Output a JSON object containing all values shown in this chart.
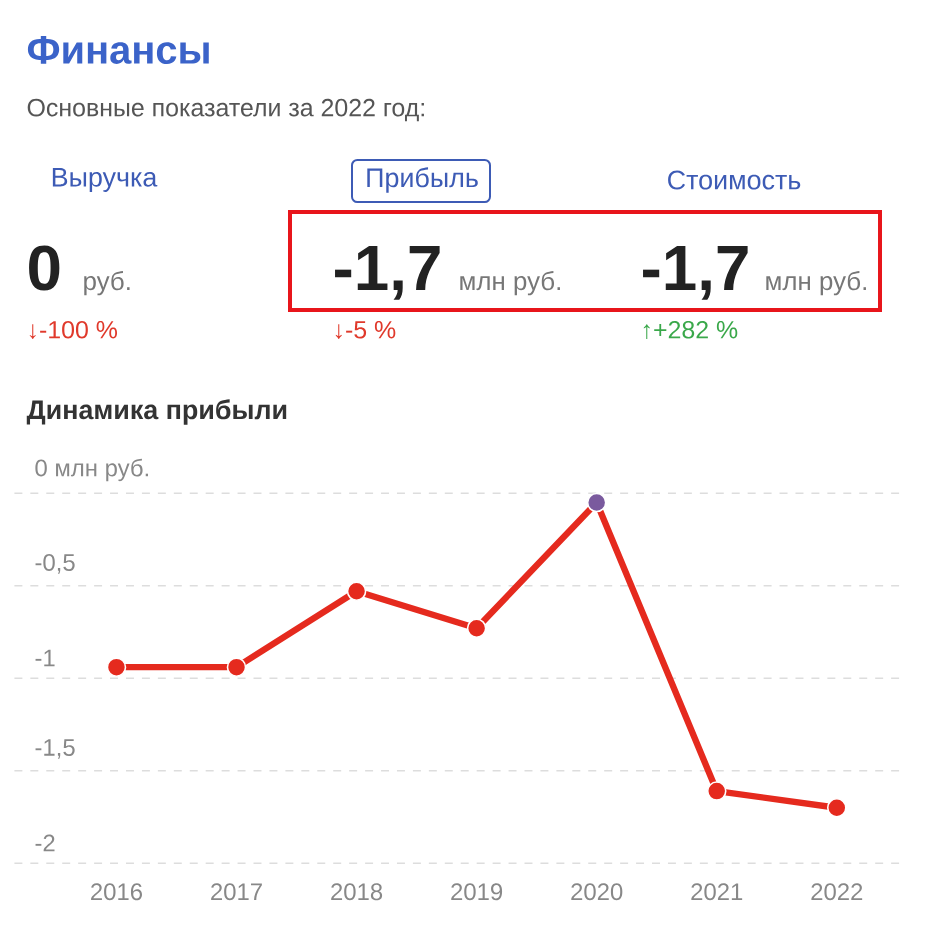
{
  "chart_data": [
    {
      "type": "other",
      "title": "Финансы",
      "subtitle": "Основные показатели за 2022 год:",
      "annotations": [
        "Выручка",
        "Прибыль",
        "Стоимость",
        "0",
        "руб.",
        "-1,7",
        "млн руб.",
        "-1,7",
        "млн руб.",
        "↓-100 %",
        "↓-5 %",
        "↑+282 %"
      ]
    },
    {
      "type": "line",
      "title": "Динамика прибыли",
      "categories": [
        "2016",
        "2017",
        "2018",
        "2019",
        "2020",
        "2021",
        "2022"
      ],
      "series": [
        {
          "color": "#e52a1e",
          "colors": [
            "#e52a1e",
            "#e52a1e",
            "#e52a1e",
            "#e52a1e",
            "#7a5a9e",
            "#e52a1e",
            "#e52a1e"
          ],
          "values": [
            -0.94,
            -0.94,
            -0.53,
            -0.73,
            -0.05,
            -1.61,
            -1.7
          ]
        }
      ],
      "ylim": [
        -2,
        0
      ],
      "yticks": [
        {
          "value": 0,
          "label": "0 млн руб."
        },
        {
          "value": -0.5,
          "label": "-0,5"
        },
        {
          "value": -1,
          "label": "-1"
        },
        {
          "value": -1.5,
          "label": "-1,5"
        },
        {
          "value": -2,
          "label": "-2"
        }
      ],
      "grid": "y",
      "marker": "circle",
      "line_style": "solid"
    }
  ]
}
